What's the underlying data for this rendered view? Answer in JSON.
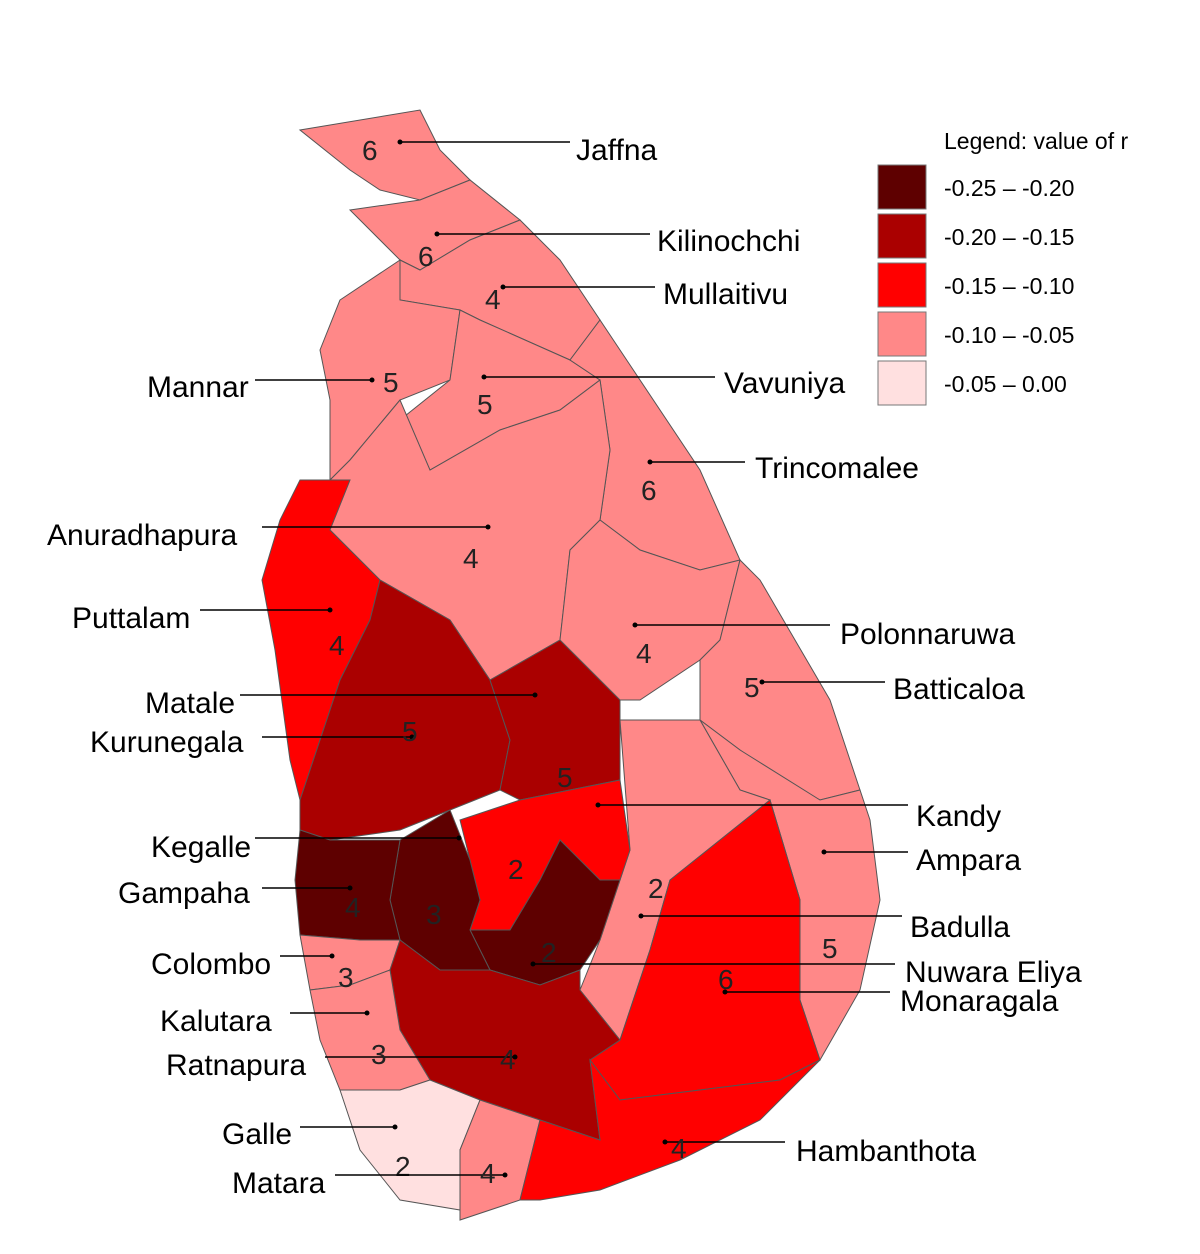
{
  "legend": {
    "title": "Legend: value of r",
    "classes": [
      {
        "label": "-0.25 – -0.20",
        "color": "#5e0000"
      },
      {
        "label": "-0.20 – -0.15",
        "color": "#aa0000"
      },
      {
        "label": "-0.15 –  -0.10",
        "color": "#ff0000"
      },
      {
        "label": "-0.10 –  -0.05",
        "color": "#ff8888"
      },
      {
        "label": "-0.05 –   0.00",
        "color": "#ffe0e0"
      }
    ]
  },
  "districts": [
    {
      "name": "Jaffna",
      "number": "6",
      "class": 3
    },
    {
      "name": "Kilinochchi",
      "number": "6",
      "class": 3
    },
    {
      "name": "Mullaitivu",
      "number": "4",
      "class": 3
    },
    {
      "name": "Mannar",
      "number": "5",
      "class": 3
    },
    {
      "name": "Vavuniya",
      "number": "5",
      "class": 3
    },
    {
      "name": "Trincomalee",
      "number": "6",
      "class": 3
    },
    {
      "name": "Anuradhapura",
      "number": "4",
      "class": 3
    },
    {
      "name": "Puttalam",
      "number": "4",
      "class": 2
    },
    {
      "name": "Kurunegala",
      "number": "5",
      "class": 1
    },
    {
      "name": "Matale",
      "number": "5",
      "class": 1
    },
    {
      "name": "Polonnaruwa",
      "number": "4",
      "class": 3
    },
    {
      "name": "Batticaloa",
      "number": "5",
      "class": 3
    },
    {
      "name": "Ampara",
      "number": "5",
      "class": 3
    },
    {
      "name": "Badulla",
      "number": "2",
      "class": 3
    },
    {
      "name": "Monaragala",
      "number": "6",
      "class": 2
    },
    {
      "name": "Kandy",
      "number": "2",
      "class": 2
    },
    {
      "name": "Nuwara Eliya",
      "number": "2",
      "class": 0
    },
    {
      "name": "Kegalle",
      "number": "3",
      "class": 0
    },
    {
      "name": "Gampaha",
      "number": "4",
      "class": 0
    },
    {
      "name": "Colombo",
      "number": "3",
      "class": 3
    },
    {
      "name": "Ratnapura",
      "number": "4",
      "class": 1
    },
    {
      "name": "Kalutara",
      "number": "3",
      "class": 3
    },
    {
      "name": "Galle",
      "number": "2",
      "class": 4
    },
    {
      "name": "Matara",
      "number": "4",
      "class": 3
    },
    {
      "name": "Hambanthota",
      "number": "4",
      "class": 2
    }
  ]
}
